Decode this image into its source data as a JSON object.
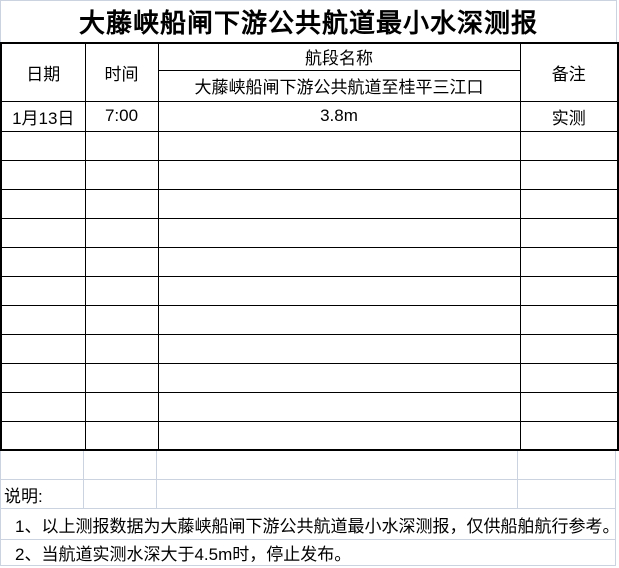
{
  "title": "大藤峡船闸下游公共航道最小水深测报",
  "table": {
    "headers": {
      "date": "日期",
      "time": "时间",
      "segment": "航段名称",
      "remark": "备注"
    },
    "segment_name": "大藤峡船闸下游公共航道至桂平三江口",
    "rows": [
      {
        "date": "1月13日",
        "time": "7:00",
        "depth": "3.8m",
        "remark": "实测"
      },
      {
        "date": "",
        "time": "",
        "depth": "",
        "remark": ""
      },
      {
        "date": "",
        "time": "",
        "depth": "",
        "remark": ""
      },
      {
        "date": "",
        "time": "",
        "depth": "",
        "remark": ""
      },
      {
        "date": "",
        "time": "",
        "depth": "",
        "remark": ""
      },
      {
        "date": "",
        "time": "",
        "depth": "",
        "remark": ""
      },
      {
        "date": "",
        "time": "",
        "depth": "",
        "remark": ""
      },
      {
        "date": "",
        "time": "",
        "depth": "",
        "remark": ""
      },
      {
        "date": "",
        "time": "",
        "depth": "",
        "remark": ""
      },
      {
        "date": "",
        "time": "",
        "depth": "",
        "remark": ""
      },
      {
        "date": "",
        "time": "",
        "depth": "",
        "remark": ""
      },
      {
        "date": "",
        "time": "",
        "depth": "",
        "remark": ""
      }
    ]
  },
  "footer": {
    "label": "说明:",
    "notes": [
      "1、以上测报数据为大藤峡船闸下游公共航道最小水深测报，仅供船舶航行参考。",
      "2、当航道实测水深大于4.5m时，停止发布。"
    ]
  },
  "colors": {
    "table_border": "#000000",
    "gridline": "#ccd3e0",
    "text": "#000000",
    "background": "#ffffff"
  }
}
